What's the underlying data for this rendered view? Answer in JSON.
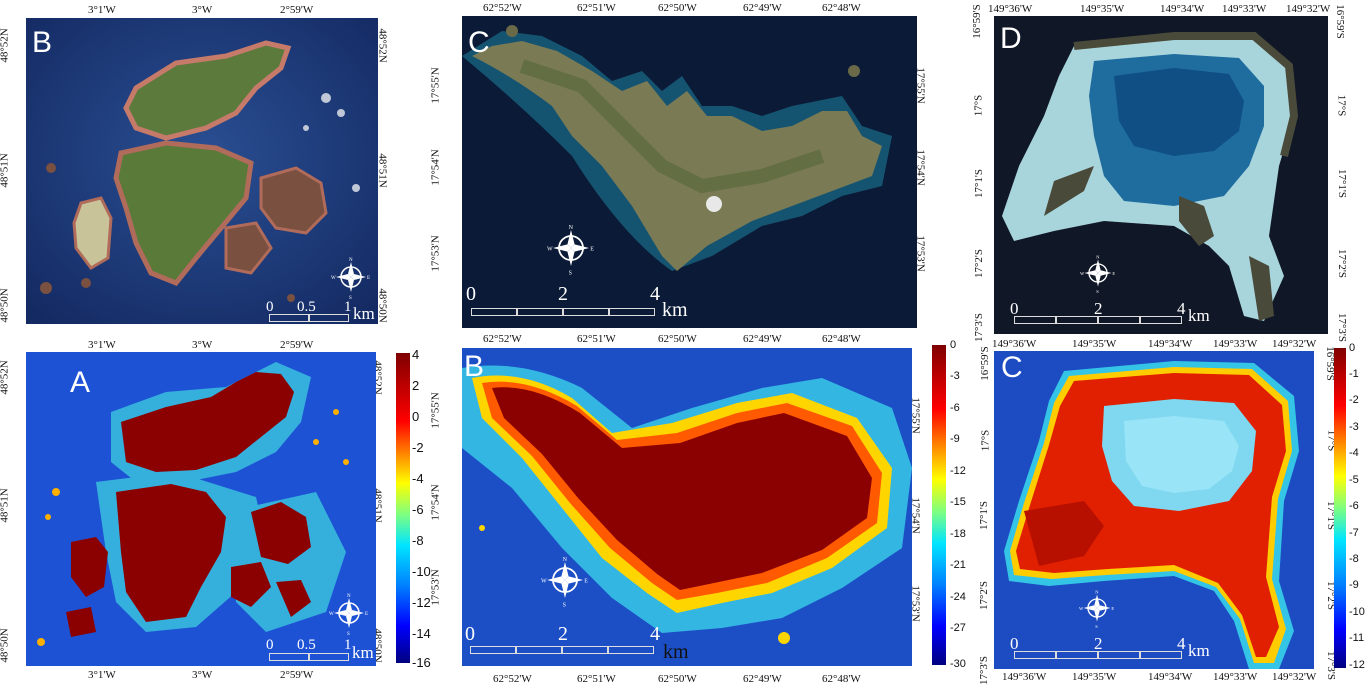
{
  "panels": {
    "top_left": {
      "label": "B",
      "top_ticks": [
        "3°1'W",
        "3°W",
        "2°59'W"
      ],
      "left_ticks": [
        "48°52N",
        "48°51N",
        "48°50N"
      ],
      "right_ticks": [
        "48°52N",
        "48°51N",
        "48°50N"
      ],
      "scale_labels": [
        "0",
        "0.5",
        "1"
      ],
      "scale_unit": "km"
    },
    "bottom_left": {
      "label": "A",
      "top_ticks": [
        "3°1'W",
        "3°W",
        "2°59'W"
      ],
      "bottom_ticks": [
        "3°1'W",
        "3°W",
        "2°59'W"
      ],
      "left_ticks": [
        "48°52N",
        "48°51N",
        "48°50N"
      ],
      "right_ticks": [
        "48°52N",
        "48°51N",
        "48°50N"
      ],
      "scale_labels": [
        "0",
        "0.5",
        "1"
      ],
      "scale_unit": "km",
      "colorbar_ticks": [
        "4",
        "2",
        "0",
        "-2",
        "-4",
        "-6",
        "-8",
        "-10",
        "-12",
        "-14",
        "-16"
      ]
    },
    "top_mid": {
      "label": "C",
      "top_ticks": [
        "62°52'W",
        "62°51'W",
        "62°50'W",
        "62°49'W",
        "62°48'W"
      ],
      "left_ticks": [
        "17°55'N",
        "17°54'N",
        "17°53'N"
      ],
      "right_ticks": [
        "17°55'N",
        "17°54'N",
        "17°53'N"
      ],
      "scale_labels": [
        "0",
        "2",
        "4"
      ],
      "scale_unit": "km"
    },
    "bottom_mid": {
      "label": "B",
      "top_ticks": [
        "62°52'W",
        "62°51'W",
        "62°50'W",
        "62°49'W",
        "62°48'W"
      ],
      "bottom_ticks": [
        "62°52'W",
        "62°51'W",
        "62°50'W",
        "62°49'W",
        "62°48'W"
      ],
      "left_ticks": [
        "17°55'N",
        "17°54'N",
        "17°53'N"
      ],
      "right_ticks": [
        "17°55'N",
        "17°54'N",
        "17°53'N"
      ],
      "scale_labels": [
        "0",
        "2",
        "4"
      ],
      "scale_unit": "km",
      "colorbar_ticks": [
        "0",
        "-3",
        "-6",
        "-9",
        "-12",
        "-15",
        "-18",
        "-21",
        "-24",
        "-27",
        "-30"
      ]
    },
    "top_right": {
      "label": "D",
      "top_ticks": [
        "149°36'W",
        "149°35'W",
        "149°34'W",
        "149°33'W",
        "149°32'W"
      ],
      "left_ticks": [
        "16°59'S",
        "17°S",
        "17°1'S",
        "17°2'S",
        "17°3'S"
      ],
      "right_ticks": [
        "16°59'S",
        "17°S",
        "17°1'S",
        "17°2'S",
        "17°3'S"
      ],
      "scale_labels": [
        "0",
        "2",
        "4"
      ],
      "scale_unit": "km"
    },
    "bottom_right": {
      "label": "C",
      "top_ticks": [
        "149°36'W",
        "149°35'W",
        "149°34'W",
        "149°33'W",
        "149°32'W"
      ],
      "bottom_ticks": [
        "149°36'W",
        "149°35'W",
        "149°34'W",
        "149°33'W",
        "149°32'W"
      ],
      "left_ticks": [
        "16°59'S",
        "17°S",
        "17°1'S",
        "17°2'S",
        "17°3'S"
      ],
      "right_ticks": [
        "16°59'S",
        "17°S",
        "17°1'S",
        "17°2'S",
        "17°3'S"
      ],
      "scale_labels": [
        "0",
        "2",
        "4"
      ],
      "scale_unit": "km",
      "colorbar_ticks": [
        "0",
        "-1",
        "-2",
        "-3",
        "-4",
        "-5",
        "-6",
        "-7",
        "-8",
        "-9",
        "-10",
        "-11",
        "-12"
      ]
    }
  },
  "compass": {
    "n": "N",
    "s": "S",
    "e": "E",
    "w": "W"
  },
  "colors": {
    "deep_sea": "#1b3f8f",
    "satellite_sea": "#0e2c5c",
    "land_red": "#8b0000",
    "shallow_cyan": "#48d6e8",
    "mid_blue": "#2e5fe0"
  }
}
